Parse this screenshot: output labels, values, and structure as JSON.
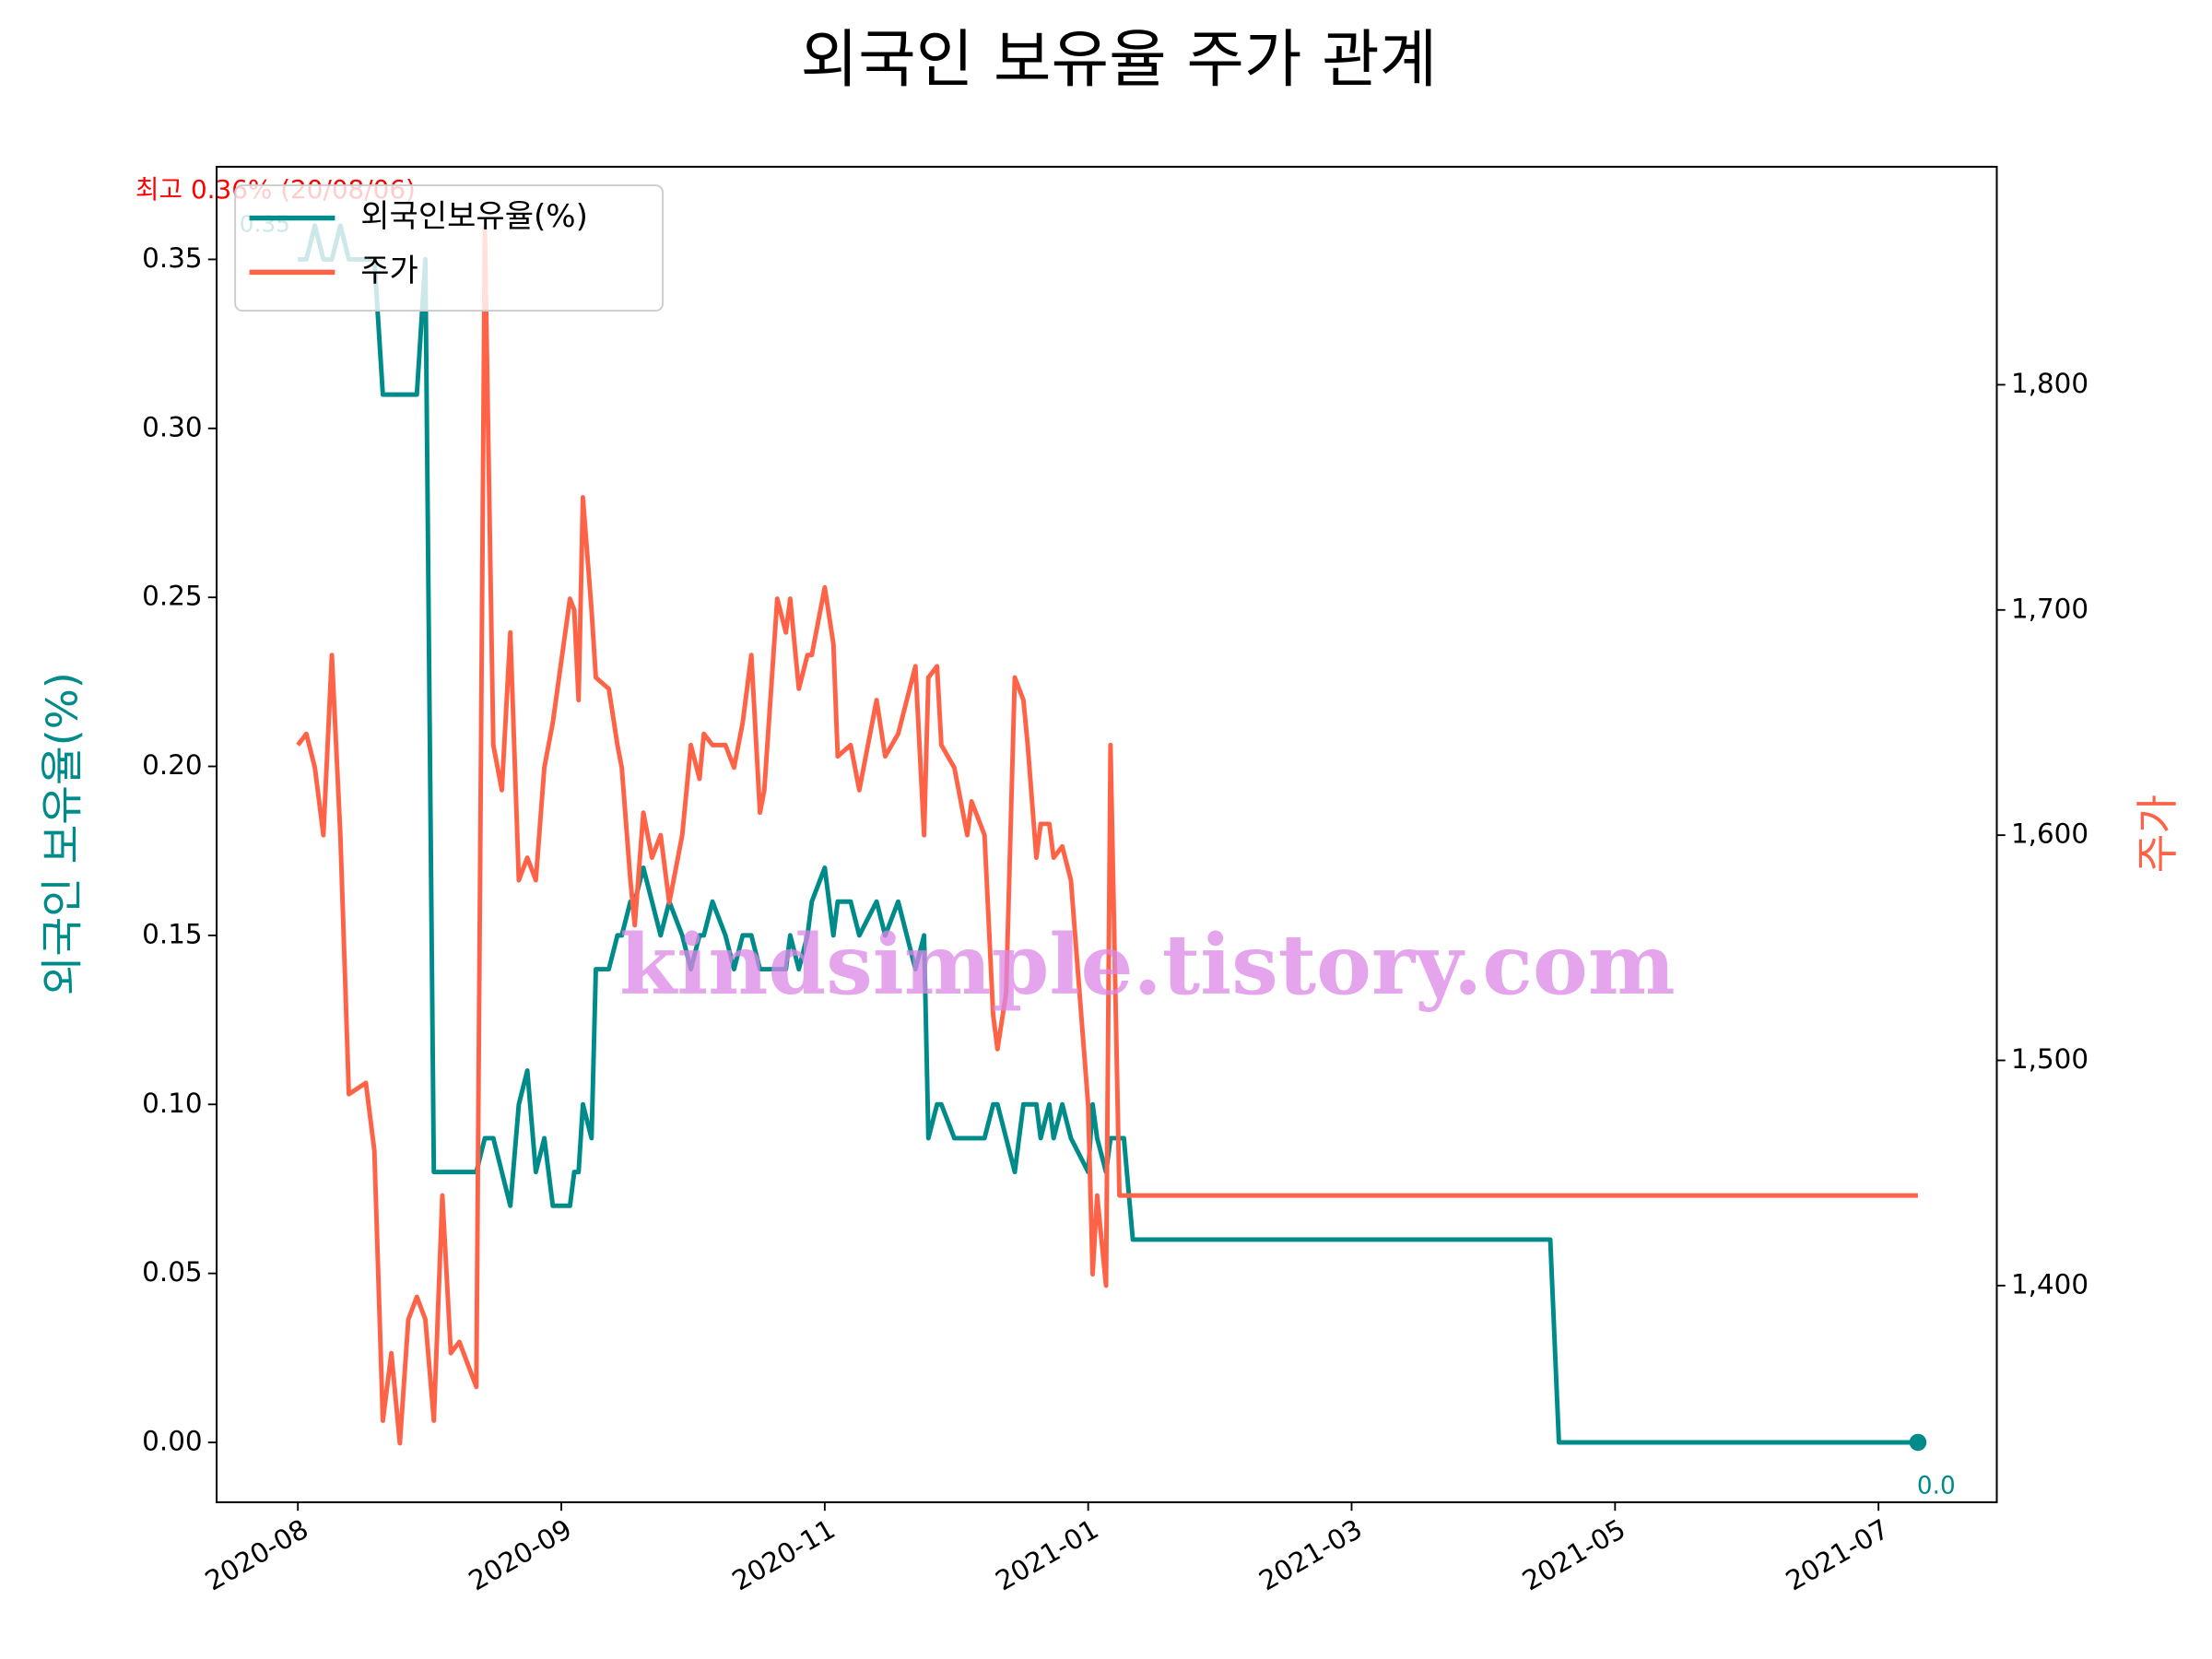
{
  "chart_data": {
    "type": "line",
    "title": "외국인 보유율 주가 관계",
    "ylabel": "외국인 보유율(%)",
    "y2label": "주가",
    "watermark": "kindsimple.tistory.com",
    "annotations": [
      {
        "text": "최고 0.36% (20/08/06)",
        "color": "#ff0000"
      },
      {
        "text": "0.35",
        "color": "#008b8b"
      },
      {
        "text": "0.0",
        "color": "#008b8b"
      }
    ],
    "legend": "upper left",
    "x": [
      "2020-08-01",
      "2020-08-02",
      "2020-08-03",
      "2020-08-04",
      "2020-08-05",
      "2020-08-06",
      "2020-08-07",
      "2020-08-09",
      "2020-08-10",
      "2020-08-11",
      "2020-08-12",
      "2020-08-13",
      "2020-08-14",
      "2020-08-15",
      "2020-08-16",
      "2020-08-17",
      "2020-08-18",
      "2020-08-19",
      "2020-08-20",
      "2020-08-22",
      "2020-08-23",
      "2020-08-24",
      "2020-08-25",
      "2020-08-26",
      "2020-08-27",
      "2020-08-28",
      "2020-08-29",
      "2020-08-30",
      "2020-08-31",
      "2020-09-03",
      "2020-09-04",
      "2020-09-05",
      "2020-09-06",
      "2020-09-08",
      "2020-09-09",
      "2020-09-12",
      "2020-09-14",
      "2020-09-15",
      "2020-09-17",
      "2020-09-18",
      "2020-09-20",
      "2020-09-22",
      "2020-09-24",
      "2020-09-26",
      "2020-09-29",
      "2020-10-01",
      "2020-10-03",
      "2020-10-04",
      "2020-10-06",
      "2020-10-09",
      "2020-10-11",
      "2020-10-13",
      "2020-10-15",
      "2020-10-17",
      "2020-10-18",
      "2020-10-21",
      "2020-10-23",
      "2020-10-24",
      "2020-10-26",
      "2020-10-28",
      "2020-10-29",
      "2020-11-01",
      "2020-11-03",
      "2020-11-04",
      "2020-11-07",
      "2020-11-09",
      "2020-11-13",
      "2020-11-15",
      "2020-11-18",
      "2020-11-20",
      "2020-11-22",
      "2020-11-24",
      "2020-11-25",
      "2020-11-27",
      "2020-11-28",
      "2020-12-01",
      "2020-12-04",
      "2020-12-05",
      "2020-12-08",
      "2020-12-10",
      "2020-12-11",
      "2020-12-13",
      "2020-12-15",
      "2020-12-17",
      "2020-12-18",
      "2020-12-20",
      "2020-12-21",
      "2020-12-23",
      "2020-12-24",
      "2020-12-26",
      "2020-12-28",
      "2021-01-01",
      "2021-01-02",
      "2021-01-03",
      "2021-01-05",
      "2021-01-06",
      "2021-01-08",
      "2021-01-09",
      "2021-01-11",
      "2021-04-16",
      "2021-04-18",
      "2021-07-10"
    ],
    "series": [
      {
        "name": "외국인보유율(%)",
        "color": "#008b8b",
        "axis": "y",
        "values": [
          0.35,
          0.35,
          0.36,
          0.35,
          0.35,
          0.36,
          0.35,
          0.35,
          0.35,
          0.31,
          0.31,
          0.31,
          0.31,
          0.31,
          0.35,
          0.08,
          0.08,
          0.08,
          0.08,
          0.08,
          0.09,
          0.09,
          0.08,
          0.07,
          0.1,
          0.11,
          0.08,
          0.09,
          0.07,
          0.07,
          0.08,
          0.08,
          0.1,
          0.09,
          0.14,
          0.14,
          0.15,
          0.15,
          0.16,
          0.16,
          0.17,
          0.16,
          0.15,
          0.16,
          0.15,
          0.14,
          0.15,
          0.15,
          0.16,
          0.15,
          0.14,
          0.15,
          0.15,
          0.14,
          0.14,
          0.14,
          0.14,
          0.15,
          0.14,
          0.15,
          0.16,
          0.17,
          0.15,
          0.16,
          0.16,
          0.15,
          0.16,
          0.15,
          0.16,
          0.15,
          0.14,
          0.15,
          0.09,
          0.1,
          0.1,
          0.09,
          0.09,
          0.09,
          0.09,
          0.1,
          0.1,
          0.09,
          0.08,
          0.1,
          0.1,
          0.1,
          0.09,
          0.1,
          0.09,
          0.1,
          0.09,
          0.08,
          0.1,
          0.09,
          0.08,
          0.09,
          0.09,
          0.09,
          0.06,
          0.06,
          0,
          0
        ]
      },
      {
        "name": "주가",
        "color": "#ff6347",
        "axis": "y2",
        "values": [
          1640,
          1645,
          1630,
          1600,
          1680,
          1600,
          1485,
          1490,
          1460,
          1340,
          1370,
          1330,
          1385,
          1395,
          1385,
          1340,
          1440,
          1370,
          1375,
          1355,
          1870,
          1640,
          1620,
          1690,
          1580,
          1590,
          1580,
          1630,
          1650,
          1705,
          1700,
          1660,
          1750,
          1700,
          1670,
          1665,
          1640,
          1630,
          1580,
          1560,
          1610,
          1590,
          1600,
          1570,
          1600,
          1640,
          1625,
          1645,
          1640,
          1640,
          1630,
          1650,
          1680,
          1610,
          1620,
          1705,
          1690,
          1705,
          1665,
          1680,
          1680,
          1710,
          1685,
          1635,
          1640,
          1620,
          1660,
          1635,
          1645,
          1660,
          1675,
          1600,
          1670,
          1675,
          1640,
          1630,
          1600,
          1615,
          1600,
          1520,
          1505,
          1530,
          1670,
          1660,
          1640,
          1590,
          1605,
          1605,
          1590,
          1595,
          1580,
          1480,
          1405,
          1440,
          1400,
          1640,
          1440,
          1440,
          1440,
          1440,
          1440,
          1440
        ]
      }
    ],
    "xlim": [
      "2020-07-23",
      "2021-07-28"
    ],
    "xticks": [
      {
        "value": "2020-08-01",
        "label": "2020-08"
      },
      {
        "value": "2020-09-01",
        "label": "2020-09"
      },
      {
        "value": "2020-11-01",
        "label": "2020-11"
      },
      {
        "value": "2021-01-01",
        "label": "2021-01"
      },
      {
        "value": "2021-03-01",
        "label": "2021-03"
      },
      {
        "value": "2021-05-01",
        "label": "2021-05"
      },
      {
        "value": "2021-07-01",
        "label": "2021-07"
      }
    ],
    "ylim": [
      -0.0177,
      0.3774
    ],
    "yticks": [
      {
        "value": 0,
        "label": "0.00"
      },
      0.05,
      {
        "value": 0.1,
        "label": "0.10"
      },
      0.15,
      {
        "value": 0.2,
        "label": "0.20"
      },
      0.25,
      {
        "value": 0.3,
        "label": "0.30"
      },
      0.35
    ],
    "y2lim": [
      1303.8,
      1896.8
    ],
    "y2ticks": [
      {
        "value": 1400,
        "label": "1,400"
      },
      {
        "value": 1500,
        "label": "1,500"
      },
      {
        "value": 1600,
        "label": "1,600"
      },
      {
        "value": 1700,
        "label": "1,700"
      },
      {
        "value": 1800,
        "label": "1,800"
      }
    ],
    "grid": false
  }
}
